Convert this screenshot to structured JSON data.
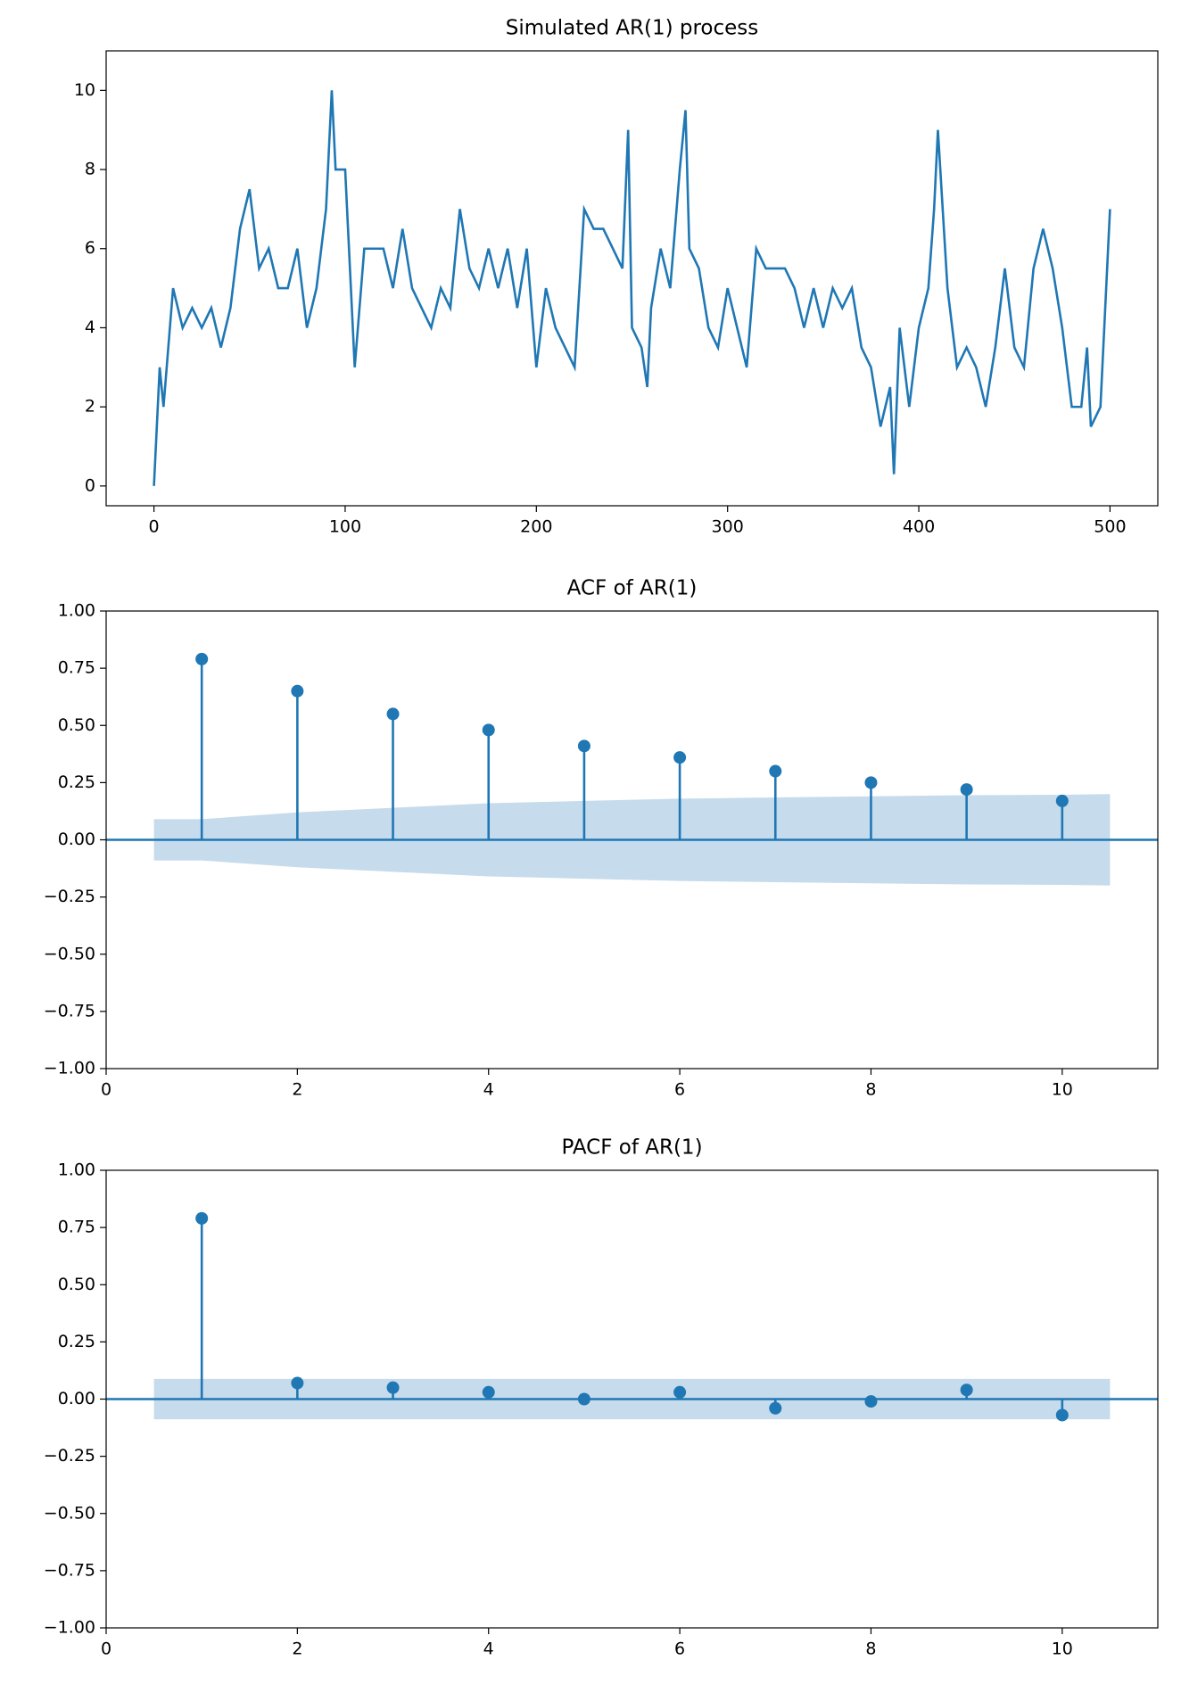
{
  "chart_data": [
    {
      "type": "line",
      "title": "Simulated AR(1) process",
      "color": "#1f77b4",
      "x": [
        0,
        3,
        5,
        10,
        15,
        20,
        25,
        30,
        35,
        40,
        45,
        50,
        55,
        60,
        65,
        70,
        75,
        80,
        85,
        90,
        93,
        95,
        100,
        105,
        110,
        115,
        120,
        125,
        130,
        135,
        140,
        145,
        150,
        155,
        160,
        165,
        170,
        175,
        180,
        185,
        190,
        195,
        200,
        205,
        210,
        215,
        220,
        225,
        230,
        235,
        240,
        245,
        248,
        250,
        255,
        258,
        260,
        265,
        270,
        275,
        278,
        280,
        285,
        290,
        295,
        300,
        305,
        310,
        315,
        320,
        325,
        330,
        335,
        340,
        345,
        350,
        355,
        360,
        365,
        370,
        375,
        380,
        385,
        387,
        390,
        395,
        400,
        405,
        408,
        410,
        415,
        420,
        425,
        430,
        435,
        440,
        445,
        450,
        455,
        460,
        465,
        470,
        475,
        480,
        485,
        488,
        490,
        495,
        500
      ],
      "values": [
        0,
        3,
        2,
        5,
        4,
        4.5,
        4,
        4.5,
        3.5,
        4.5,
        6.5,
        7.5,
        5.5,
        6,
        5,
        5,
        6,
        4,
        5,
        7,
        10,
        8,
        8,
        3,
        6,
        6,
        6,
        5,
        6.5,
        5,
        4.5,
        4,
        5,
        4.5,
        7,
        5.5,
        5,
        6,
        5,
        6,
        4.5,
        6,
        3,
        5,
        4,
        3.5,
        3,
        7,
        6.5,
        6.5,
        6,
        5.5,
        9,
        4,
        3.5,
        2.5,
        4.5,
        6,
        5,
        8,
        9.5,
        6,
        5.5,
        4,
        3.5,
        5,
        4,
        3,
        6,
        5.5,
        5.5,
        5.5,
        5,
        4,
        5,
        4,
        5,
        4.5,
        5,
        3.5,
        3,
        1.5,
        2.5,
        0.3,
        4,
        2,
        4,
        5,
        7,
        9,
        5,
        3,
        3.5,
        3,
        2,
        3.5,
        5.5,
        3.5,
        3,
        5.5,
        6.5,
        5.5,
        4,
        2,
        2,
        3.5,
        1.5,
        2,
        7
      ],
      "xlim": [
        -25,
        525
      ],
      "ylim": [
        -0.5,
        11
      ],
      "xticks": [
        0,
        100,
        200,
        300,
        400,
        500
      ],
      "yticks": [
        0,
        2,
        4,
        6,
        8,
        10
      ]
    },
    {
      "type": "stem",
      "title": "ACF of AR(1)",
      "color": "#1f77b4",
      "x": [
        1,
        2,
        3,
        4,
        5,
        6,
        7,
        8,
        9,
        10
      ],
      "values": [
        0.79,
        0.65,
        0.55,
        0.48,
        0.41,
        0.36,
        0.3,
        0.25,
        0.22,
        0.17
      ],
      "band": {
        "color": "#c6dbec",
        "x": [
          0.5,
          1,
          2,
          3,
          4,
          5,
          6,
          7,
          8,
          9,
          10,
          10.5
        ],
        "upper": [
          0.09,
          0.09,
          0.12,
          0.14,
          0.16,
          0.17,
          0.18,
          0.185,
          0.19,
          0.195,
          0.197,
          0.2
        ],
        "lower": [
          -0.09,
          -0.09,
          -0.12,
          -0.14,
          -0.16,
          -0.17,
          -0.18,
          -0.185,
          -0.19,
          -0.195,
          -0.197,
          -0.2
        ]
      },
      "xlim": [
        0,
        11
      ],
      "ylim": [
        -1,
        1
      ],
      "xticks": [
        0,
        2,
        4,
        6,
        8,
        10
      ],
      "yticks": [
        {
          "value": -1,
          "label": "−1.00"
        },
        {
          "value": -0.75,
          "label": "−0.75"
        },
        {
          "value": -0.5,
          "label": "−0.50"
        },
        {
          "value": -0.25,
          "label": "−0.25"
        },
        {
          "value": 0,
          "label": "0.00"
        },
        {
          "value": 0.25,
          "label": "0.25"
        },
        {
          "value": 0.5,
          "label": "0.50"
        },
        {
          "value": 0.75,
          "label": "0.75"
        },
        {
          "value": 1,
          "label": "1.00"
        }
      ]
    },
    {
      "type": "stem",
      "title": "PACF of AR(1)",
      "color": "#1f77b4",
      "x": [
        1,
        2,
        3,
        4,
        5,
        6,
        7,
        8,
        9,
        10
      ],
      "values": [
        0.79,
        0.07,
        0.05,
        0.03,
        0.0,
        0.03,
        -0.04,
        -0.01,
        0.04,
        -0.07
      ],
      "band": {
        "color": "#c6dbec",
        "x": [
          0.5,
          10.5
        ],
        "upper": [
          0.088,
          0.088
        ],
        "lower": [
          -0.088,
          -0.088
        ]
      },
      "xlim": [
        0,
        11
      ],
      "ylim": [
        -1,
        1
      ],
      "xticks": [
        0,
        2,
        4,
        6,
        8,
        10
      ],
      "yticks": [
        {
          "value": -1,
          "label": "−1.00"
        },
        {
          "value": -0.75,
          "label": "−0.75"
        },
        {
          "value": -0.5,
          "label": "−0.50"
        },
        {
          "value": -0.25,
          "label": "−0.25"
        },
        {
          "value": 0,
          "label": "0.00"
        },
        {
          "value": 0.25,
          "label": "0.25"
        },
        {
          "value": 0.5,
          "label": "0.50"
        },
        {
          "value": 0.75,
          "label": "0.75"
        },
        {
          "value": 1,
          "label": "1.00"
        }
      ]
    }
  ]
}
